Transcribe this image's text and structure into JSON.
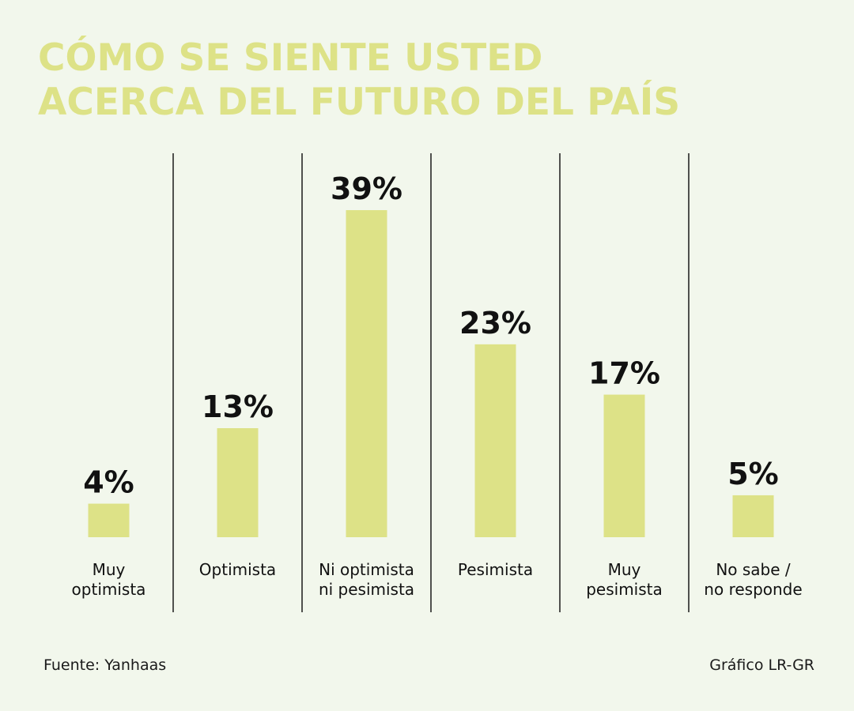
{
  "title_lines": [
    "CÓMO SE SIENTE USTED",
    "ACERCA DEL FUTURO DEL PAÍS"
  ],
  "chart_data": {
    "type": "bar",
    "title": "CÓMO SE SIENTE USTED ACERCA DEL FUTURO DEL PAÍS",
    "categories": [
      [
        "Muy",
        "optimista"
      ],
      [
        "Optimista"
      ],
      [
        "Ni optimista",
        "ni pesimista"
      ],
      [
        "Pesimista"
      ],
      [
        "Muy",
        "pesimista"
      ],
      [
        "No sabe /",
        "no responde"
      ]
    ],
    "values": [
      4,
      13,
      39,
      23,
      17,
      5
    ],
    "value_labels": [
      "4%",
      "13%",
      "39%",
      "23%",
      "17%",
      "5%"
    ],
    "unit": "%",
    "ylim": [
      0,
      39
    ],
    "grid": false,
    "legend": "none",
    "bar_color": "#dde287"
  },
  "footer": {
    "source": "Fuente: Yanhaas",
    "credit": "Gráfico LR-GR"
  },
  "colors": {
    "background": "#f2f7ec",
    "title": "#dde287",
    "divider": "#1a1a1a",
    "text": "#111111"
  }
}
